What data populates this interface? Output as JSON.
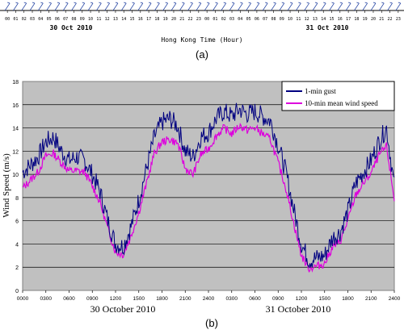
{
  "top_panel": {
    "hour_labels": [
      "00",
      "01",
      "02",
      "03",
      "04",
      "05",
      "06",
      "07",
      "08",
      "09",
      "10",
      "11",
      "12",
      "13",
      "14",
      "15",
      "16",
      "17",
      "18",
      "19",
      "20",
      "21",
      "22",
      "23",
      "00",
      "01",
      "02",
      "03",
      "04",
      "05",
      "06",
      "07",
      "08",
      "09",
      "10",
      "11",
      "12",
      "13",
      "14",
      "15",
      "16",
      "17",
      "18",
      "19",
      "20",
      "21",
      "22",
      "23"
    ],
    "date_labels": [
      "30 Oct 2010",
      "31 Oct 2010"
    ],
    "xlabel": "Hong Kong Time (Hour)",
    "caption": "(a)"
  },
  "chart_data": {
    "type": "line",
    "title": "",
    "xlabel": "",
    "ylabel": "Wind Speed (m/s)",
    "ylim": [
      0,
      18
    ],
    "yticks": [
      0,
      2,
      4,
      6,
      8,
      10,
      12,
      14,
      16,
      18
    ],
    "xlim": [
      0,
      48
    ],
    "xticks": [
      "0000",
      "0300",
      "0600",
      "0900",
      "1200",
      "1500",
      "1800",
      "2100",
      "2400",
      "0300",
      "0600",
      "0900",
      "1200",
      "1500",
      "1800",
      "2100",
      "2400"
    ],
    "date_labels": [
      "30 October 2010",
      "31 October 2010"
    ],
    "grid": true,
    "legend_position": "top-right",
    "caption": "(b)",
    "x_hours": [
      0,
      1,
      2,
      3,
      4,
      5,
      6,
      7,
      8,
      9,
      10,
      11,
      12,
      13,
      14,
      15,
      16,
      17,
      18,
      19,
      20,
      21,
      22,
      23,
      24,
      25,
      26,
      27,
      28,
      29,
      30,
      31,
      32,
      33,
      34,
      35,
      36,
      37,
      38,
      39,
      40,
      41,
      42,
      43,
      44,
      45,
      46,
      47,
      48
    ],
    "series": [
      {
        "name": "1-min gust",
        "color": "#000080",
        "values": [
          10.2,
          10.8,
          11.5,
          12.8,
          13.2,
          12.0,
          11.2,
          11.5,
          11.2,
          10.0,
          8.5,
          6.0,
          4.0,
          3.8,
          5.5,
          7.8,
          10.5,
          13.2,
          14.5,
          14.8,
          14.2,
          12.0,
          11.5,
          13.2,
          13.6,
          14.8,
          15.4,
          15.0,
          15.6,
          15.2,
          15.4,
          15.0,
          14.6,
          12.5,
          10.2,
          7.0,
          4.0,
          2.6,
          2.8,
          3.0,
          4.5,
          5.0,
          6.8,
          9.2,
          10.2,
          11.2,
          12.8,
          14.0,
          9.0
        ]
      },
      {
        "name": "10-min mean wind speed",
        "color": "#dd00dd",
        "values": [
          8.8,
          9.5,
          10.2,
          11.6,
          11.8,
          11.0,
          10.3,
          10.3,
          10.2,
          9.0,
          7.6,
          5.3,
          3.3,
          3.1,
          4.7,
          6.7,
          9.2,
          11.8,
          12.8,
          13.0,
          12.7,
          10.5,
          10.0,
          11.7,
          12.2,
          13.3,
          14.0,
          13.5,
          14.2,
          13.8,
          14.0,
          13.5,
          13.0,
          11.0,
          8.8,
          5.8,
          3.0,
          1.9,
          2.1,
          2.3,
          3.7,
          4.2,
          6.0,
          8.2,
          9.2,
          10.1,
          11.6,
          12.4,
          7.8
        ]
      }
    ]
  }
}
